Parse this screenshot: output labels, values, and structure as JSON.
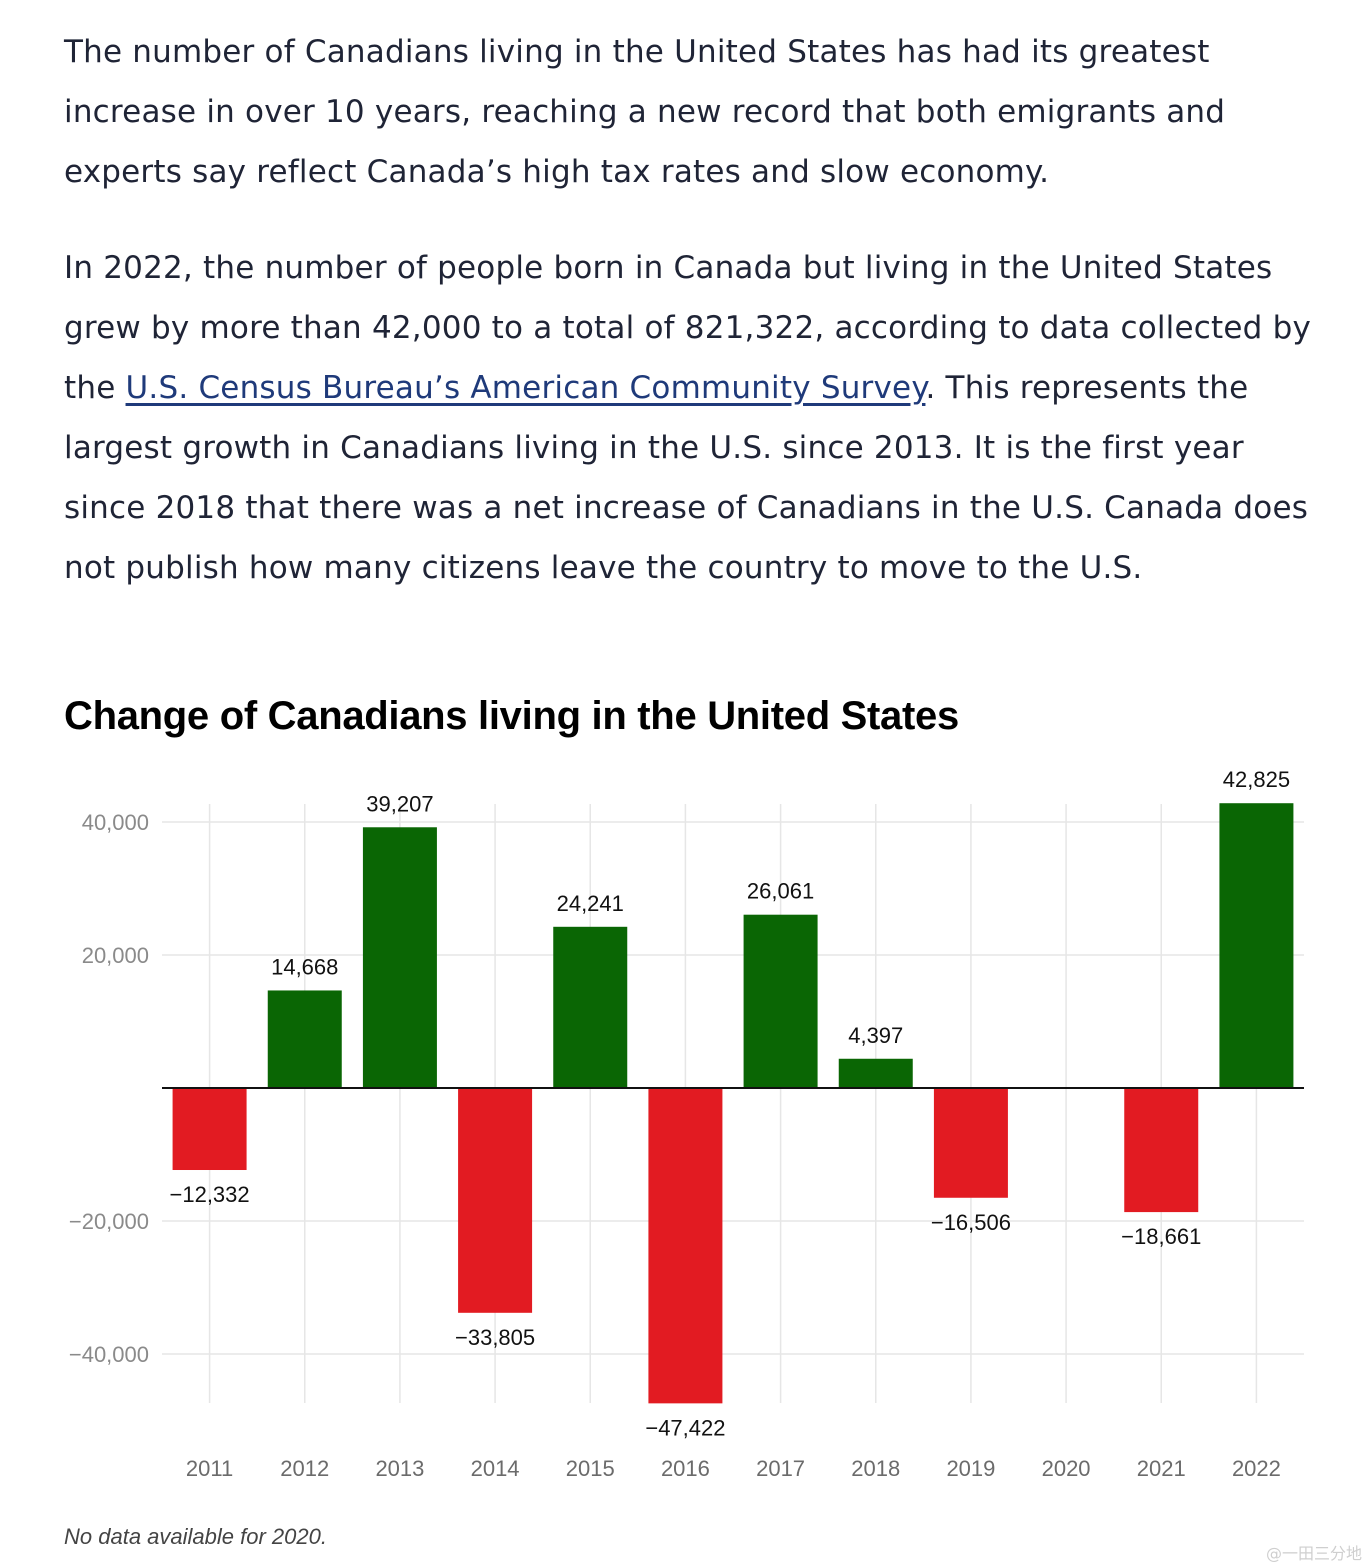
{
  "article": {
    "p1": "The number of Canadians living in the United States has had its greatest increase in over 10 years, reaching a new record that both emigrants and experts say reflect Canada’s high tax rates and slow economy.",
    "p2_before": "In 2022, the number of people born in Canada but living in the United States grew by more than 42,000 to a total of 821,322, according to data collected by the ",
    "p2_link": "U.S. Census Bureau’s American Community Survey",
    "p2_after": ". This represents the largest growth in Canadians living in the U.S. since 2013. It is the first year since 2018 that there was a net increase of Canadians in the U.S. Canada does not publish how many citizens leave the country to move to the U.S."
  },
  "chart_data": {
    "type": "bar",
    "title": "Change of Canadians living in the United States",
    "categories": [
      "2011",
      "2012",
      "2013",
      "2014",
      "2015",
      "2016",
      "2017",
      "2018",
      "2019",
      "2020",
      "2021",
      "2022"
    ],
    "values": [
      -12332,
      14668,
      39207,
      -33805,
      24241,
      -47422,
      26061,
      4397,
      -16506,
      null,
      -18661,
      42825
    ],
    "data_labels": [
      "−12,332",
      "14,668",
      "39,207",
      "−33,805",
      "24,241",
      "−47,422",
      "26,061",
      "4,397",
      "−16,506",
      "",
      "−18,661",
      "42,825"
    ],
    "yticks": [
      40000,
      20000,
      -20000,
      -40000
    ],
    "ytick_labels": [
      "40,000",
      "20,000",
      "−20,000",
      "−40,000"
    ],
    "ylim": [
      -47422,
      42825
    ],
    "grid": true,
    "colors": {
      "positive": "#0a6604",
      "negative": "#e21b22"
    },
    "footnote": "No data available for 2020."
  },
  "watermark": "@一田三分地"
}
